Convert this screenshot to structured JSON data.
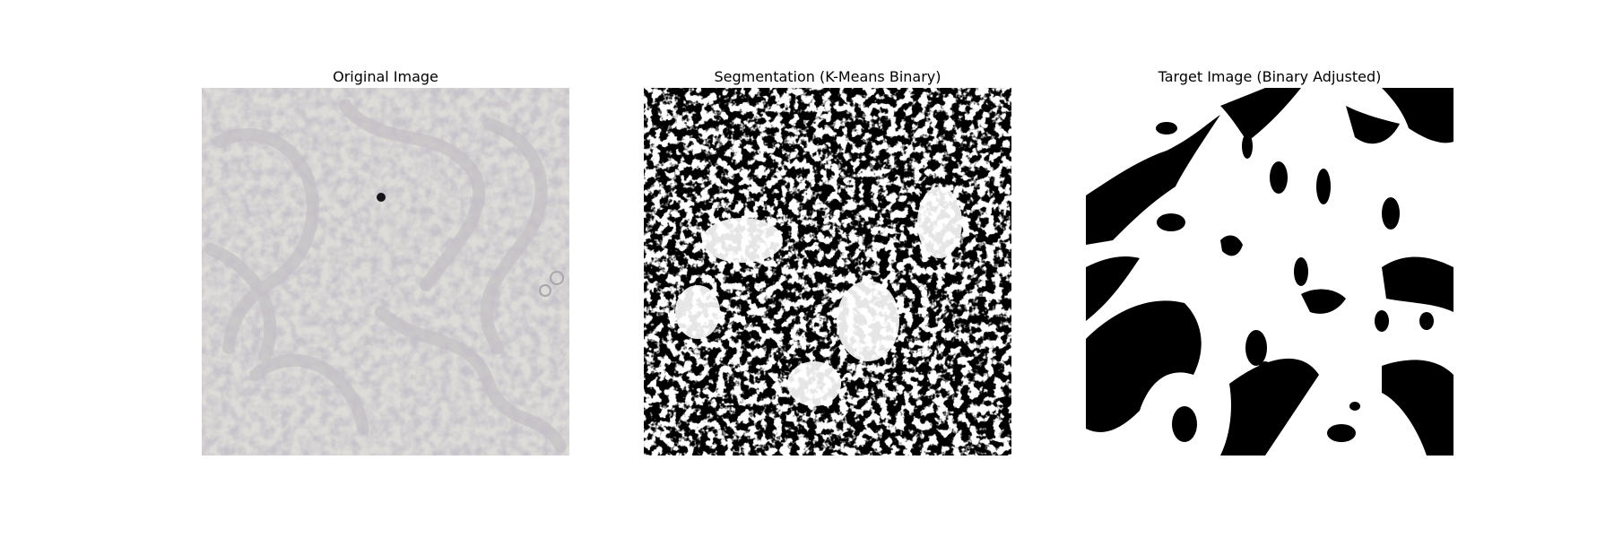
{
  "panels": [
    {
      "title": "Original Image",
      "image_kind": "microscopy-grayscale"
    },
    {
      "title": "Segmentation (K-Means Binary)",
      "image_kind": "edge-binary"
    },
    {
      "title": "Target Image (Binary Adjusted)",
      "image_kind": "mask-binary"
    }
  ],
  "colors": {
    "original_bg": "#dcdad6",
    "original_tissue": "#bdb8bd",
    "original_dark": "#7c7484",
    "binary_fg": "#ffffff",
    "binary_bg": "#000000"
  }
}
